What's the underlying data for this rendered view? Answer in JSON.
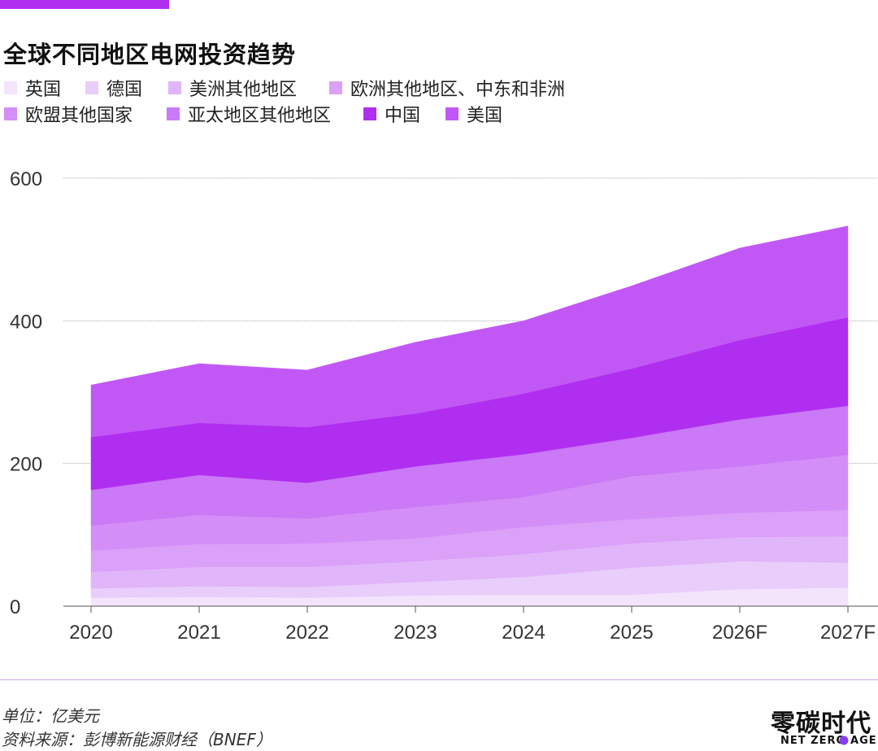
{
  "title": "全球不同地区电网投资趋势",
  "brand_color": "#b02ef0",
  "chart_data": {
    "type": "area",
    "stacked": true,
    "title": "全球不同地区电网投资趋势",
    "xlabel": "",
    "ylabel": "",
    "categories": [
      "2020",
      "2021",
      "2022",
      "2023",
      "2024",
      "2025",
      "2026F",
      "2027F"
    ],
    "ylim": [
      0,
      600
    ],
    "yticks": [
      0,
      200,
      400,
      600
    ],
    "grid": true,
    "legend_position": "top",
    "series": [
      {
        "name": "英国",
        "color": "#f3e4fc",
        "values": [
          12,
          13,
          12,
          15,
          16,
          16,
          24,
          26
        ]
      },
      {
        "name": "德国",
        "color": "#e9cdfb",
        "values": [
          13,
          15,
          15,
          19,
          25,
          38,
          39,
          35
        ]
      },
      {
        "name": "美洲其他地区",
        "color": "#e1b5fa",
        "values": [
          23,
          27,
          28,
          29,
          32,
          34,
          34,
          37
        ]
      },
      {
        "name": "欧洲其他地区、中东和非洲",
        "color": "#dba0f8",
        "values": [
          30,
          32,
          33,
          32,
          38,
          34,
          34,
          37
        ]
      },
      {
        "name": "欧盟其他国家",
        "color": "#d48ef7",
        "values": [
          35,
          41,
          35,
          44,
          42,
          60,
          65,
          77
        ]
      },
      {
        "name": "亚太地区其他地区",
        "color": "#cb79f6",
        "values": [
          50,
          56,
          50,
          57,
          60,
          54,
          66,
          69
        ]
      },
      {
        "name": "中国",
        "color": "#b02ef0",
        "values": [
          74,
          73,
          78,
          74,
          85,
          97,
          111,
          124
        ]
      },
      {
        "name": "美国",
        "color": "#c158f5",
        "values": [
          73,
          83,
          80,
          100,
          102,
          116,
          129,
          128
        ]
      }
    ]
  },
  "footer": {
    "unit": "单位：亿美元",
    "source": "资料来源：彭博新能源财经（BNEF）"
  },
  "logo": {
    "cn": "零碳时代",
    "en": "NET ZERO AGE"
  }
}
